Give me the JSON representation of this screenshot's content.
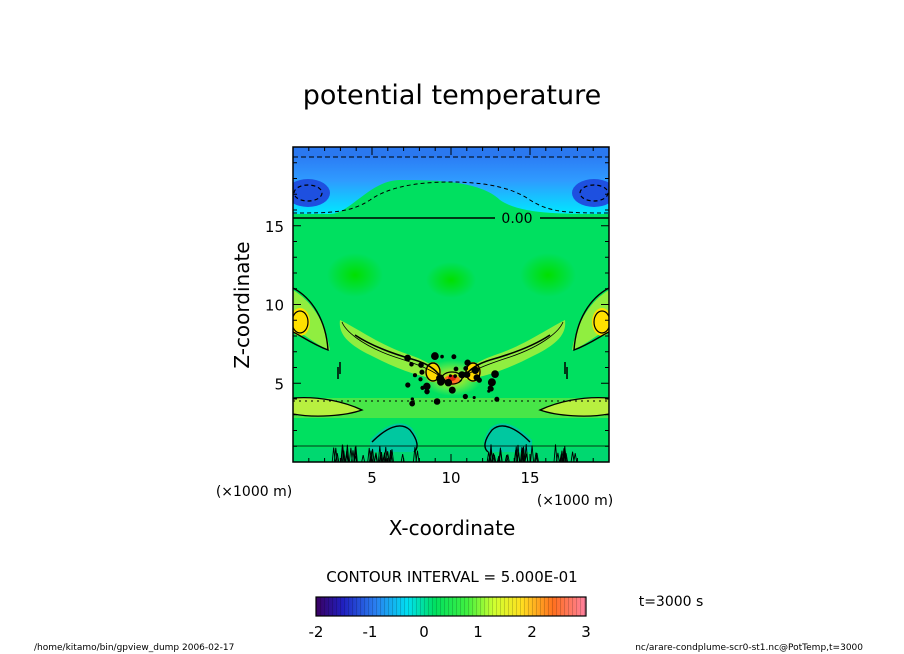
{
  "chart_data": {
    "type": "heatmap",
    "title": "potential temperature",
    "xlabel": "X-coordinate",
    "ylabel": "Z-coordinate",
    "x_unit": "(×1000 m)",
    "y_unit": "(×1000 m)",
    "xlim": [
      0,
      20
    ],
    "ylim": [
      0,
      20
    ],
    "x_ticks": [
      5,
      10,
      15
    ],
    "y_ticks": [
      5,
      10,
      15
    ],
    "x_tick_labels": [
      "5",
      "10",
      "15"
    ],
    "y_tick_labels": [
      "5",
      "10",
      "15"
    ],
    "contour_label": "0.00",
    "contour_interval": "CONTOUR INTERVAL = 5.000E-01",
    "time_label": "t=3000 s",
    "colorbar": {
      "min": -2,
      "max": 3,
      "ticks": [
        "-2",
        "-1",
        "0",
        "1",
        "2",
        "3"
      ]
    }
  },
  "footer": {
    "left": "/home/kitamo/bin/gpview_dump  2006-02-17",
    "right": "nc/arare-condplume-scr0-st1.nc@PotTemp,t=3000"
  }
}
